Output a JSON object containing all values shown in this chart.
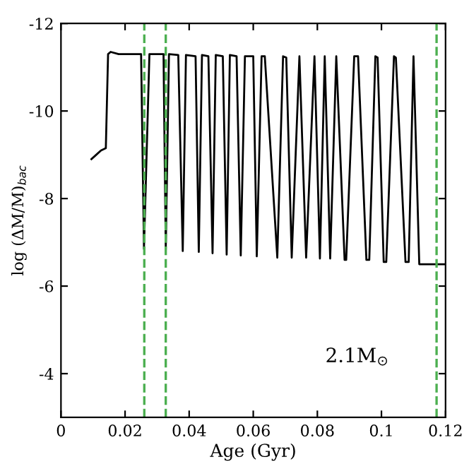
{
  "chart_data": {
    "type": "line",
    "xlabel": "Age (Gyr)",
    "ylabel": "log (ΔM/M)$_{bac}$",
    "annotations": [
      "2.1M$_{⊙}$"
    ],
    "xlim": [
      0,
      0.12
    ],
    "xticks": [
      0,
      0.02,
      0.04,
      0.06,
      0.08,
      {
        "value": 0.1,
        "label": "0.1"
      },
      0.12
    ],
    "ylim": [
      -3,
      -12
    ],
    "yticks": [
      -4,
      -6,
      -8,
      -10,
      -12
    ],
    "grid": false,
    "marker": "none",
    "line_style": "solid",
    "series": [
      {
        "color": "#000000",
        "x": [
          0.0095,
          0.011,
          0.0125,
          0.014,
          0.0147,
          0.0155,
          0.018,
          0.02,
          0.0225,
          0.025,
          0.0259,
          0.0276,
          0.032,
          0.0327,
          0.0337,
          0.0366,
          0.038,
          0.039,
          0.042,
          0.043,
          0.044,
          0.046,
          0.0473,
          0.0483,
          0.0505,
          0.0517,
          0.0527,
          0.0548,
          0.0561,
          0.0574,
          0.06,
          0.0611,
          0.0626,
          0.0636,
          0.0675,
          0.0693,
          0.0703,
          0.072,
          0.0744,
          0.0765,
          0.0791,
          0.0808,
          0.0823,
          0.084,
          0.0859,
          0.0885,
          0.089,
          0.0915,
          0.0927,
          0.0953,
          0.0962,
          0.0981,
          0.0988,
          0.1007,
          0.1015,
          0.1039,
          0.1045,
          0.1075,
          0.1085,
          0.11,
          0.1118,
          0.12
        ],
        "values": [
          -8.9,
          -9.0,
          -9.1,
          -9.15,
          -11.3,
          -11.35,
          -11.3,
          -11.3,
          -11.3,
          -11.3,
          -6.85,
          -11.3,
          -11.3,
          -6.83,
          -11.3,
          -11.28,
          -6.8,
          -11.28,
          -11.25,
          -6.78,
          -11.28,
          -11.25,
          -6.75,
          -11.28,
          -11.25,
          -6.72,
          -11.28,
          -11.25,
          -6.7,
          -11.25,
          -11.25,
          -6.68,
          -11.25,
          -11.25,
          -6.65,
          -11.25,
          -11.22,
          -6.65,
          -11.25,
          -6.65,
          -11.25,
          -6.63,
          -11.25,
          -6.63,
          -11.25,
          -6.6,
          -6.6,
          -11.25,
          -11.25,
          -6.6,
          -6.6,
          -11.25,
          -11.22,
          -6.55,
          -6.55,
          -11.25,
          -11.22,
          -6.55,
          -6.55,
          -11.25,
          -6.5,
          -6.5
        ]
      }
    ],
    "ref_lines": [
      {
        "axis": "x",
        "value": 0.026,
        "color": "#4caf50",
        "line_style": "dashed"
      },
      {
        "axis": "x",
        "value": 0.0327,
        "color": "#4caf50",
        "line_style": "dashed"
      },
      {
        "axis": "x",
        "value": 0.1172,
        "color": "#4caf50",
        "line_style": "dashed"
      }
    ]
  }
}
